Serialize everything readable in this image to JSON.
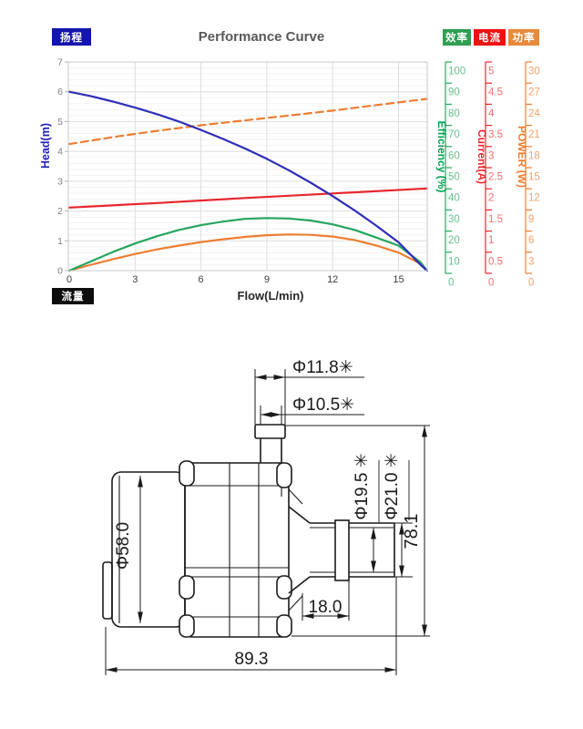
{
  "chart": {
    "title": "Performance Curve",
    "badges": {
      "head": {
        "label": "扬程",
        "bg": "#1414ae"
      },
      "flow": {
        "label": "流量",
        "bg": "#0d0d0d"
      },
      "efficiency": {
        "label": "效率",
        "bg": "#2e9e50"
      },
      "current": {
        "label": "电流",
        "bg": "#ee1111"
      },
      "power": {
        "label": "功率",
        "bg": "#e78a3c"
      }
    },
    "y_axis": {
      "title": "Head(m)",
      "color": "#2323bb",
      "tick_labels": [
        "7",
        "6",
        "5",
        "4",
        "3",
        "2",
        "1",
        "0"
      ]
    },
    "x_axis": {
      "title": "Flow(L/min)",
      "tick_labels": [
        "0",
        "3",
        "6",
        "9",
        "12",
        "15"
      ]
    },
    "right_axes": [
      {
        "name": "efficiency",
        "title": "Efficiency (%)",
        "line_color": "#2aa55c",
        "title_color": "#00a050",
        "label_color": "#63c08d",
        "tick_labels": [
          "100",
          "90",
          "80",
          "70",
          "60",
          "50",
          "40",
          "30",
          "20",
          "10",
          "0"
        ]
      },
      {
        "name": "current",
        "title": "Current(A)",
        "line_color": "#e8262d",
        "title_color": "#e8262d",
        "label_color": "#f07070",
        "tick_labels": [
          "5",
          "4.5",
          "4",
          "3.5",
          "3",
          "2.5",
          "2",
          "1.5",
          "1",
          "0.5",
          "0"
        ]
      },
      {
        "name": "power",
        "title": "POWER (W)",
        "line_color": "#ed7d31",
        "title_color": "#ed7d31",
        "label_color": "#f2a169",
        "tick_labels": [
          "30",
          "27",
          "24",
          "21",
          "18",
          "15",
          "12",
          "9",
          "6",
          "3",
          "0"
        ]
      }
    ]
  },
  "chart_data": {
    "type": "line",
    "title": "Performance Curve",
    "xlabel": "Flow(L/min)",
    "x_range": [
      0,
      16.3
    ],
    "x_ticks": [
      0,
      3,
      6,
      9,
      12,
      15
    ],
    "grid": true,
    "axes": {
      "head": {
        "label": "Head(m)",
        "range": [
          0,
          7
        ],
        "ticks_step": 1
      },
      "efficiency": {
        "label": "Efficiency (%)",
        "range": [
          0,
          100
        ],
        "ticks_step": 10
      },
      "current": {
        "label": "Current(A)",
        "range": [
          0,
          5
        ],
        "ticks_step": 0.5
      },
      "power": {
        "label": "POWER (W)",
        "range": [
          0,
          30
        ],
        "ticks_step": 3
      }
    },
    "series": [
      {
        "name": "power-input-dashed",
        "axis": "power",
        "color": "#ed7d31",
        "style": "dashed",
        "x": [
          0,
          2,
          4,
          6,
          8,
          10,
          12,
          14,
          16.3
        ],
        "y": [
          18.2,
          19.2,
          20.1,
          20.9,
          21.6,
          22.3,
          23.0,
          23.8,
          24.7
        ]
      },
      {
        "name": "current",
        "axis": "current",
        "color": "#e8262d",
        "style": "solid",
        "x": [
          0,
          4,
          8,
          12,
          16.3
        ],
        "y": [
          1.51,
          1.62,
          1.74,
          1.85,
          1.97
        ]
      },
      {
        "name": "power-output",
        "axis": "power",
        "color": "#ed7d31",
        "style": "solid",
        "x": [
          0,
          1,
          2,
          3,
          4,
          5,
          6,
          7,
          8,
          9,
          10,
          11,
          12,
          13,
          14,
          15,
          16,
          16.3
        ],
        "y": [
          0,
          0.85,
          1.65,
          2.4,
          3.05,
          3.6,
          4.1,
          4.5,
          4.85,
          5.1,
          5.2,
          5.15,
          4.9,
          4.4,
          3.6,
          2.6,
          1.0,
          0
        ]
      },
      {
        "name": "efficiency",
        "axis": "efficiency",
        "color": "#27a55f",
        "style": "solid",
        "x": [
          0,
          1,
          2,
          3,
          4,
          5,
          6,
          7,
          8,
          9,
          10,
          11,
          12,
          13,
          14,
          15,
          16,
          16.3
        ],
        "y": [
          0,
          4.5,
          9,
          13,
          16.5,
          19.5,
          21.8,
          23.5,
          24.8,
          25.2,
          25,
          24,
          22.2,
          19.5,
          15.8,
          12,
          4,
          0
        ]
      },
      {
        "name": "head",
        "axis": "head",
        "color": "#2e2eb8",
        "style": "solid",
        "x": [
          0,
          1,
          2,
          3,
          4,
          5,
          6,
          7,
          8,
          9,
          10,
          11,
          12,
          13,
          14,
          15,
          16,
          16.3
        ],
        "y": [
          6.0,
          5.85,
          5.67,
          5.47,
          5.25,
          5.0,
          4.72,
          4.42,
          4.1,
          3.75,
          3.37,
          2.95,
          2.5,
          2.02,
          1.5,
          0.95,
          0.2,
          0
        ]
      }
    ]
  },
  "drawing": {
    "dim_inlet_outer": "Φ11.8✳",
    "dim_inlet_inner": "Φ10.5✳",
    "dim_body_diameter": "Φ58.0",
    "dim_outlet_inner": "Φ19.5 ✳",
    "dim_outlet_outer": "Φ21.0 ✳",
    "dim_height": "78.1",
    "dim_outlet_length": "18.0",
    "dim_total_length": "89.3"
  }
}
